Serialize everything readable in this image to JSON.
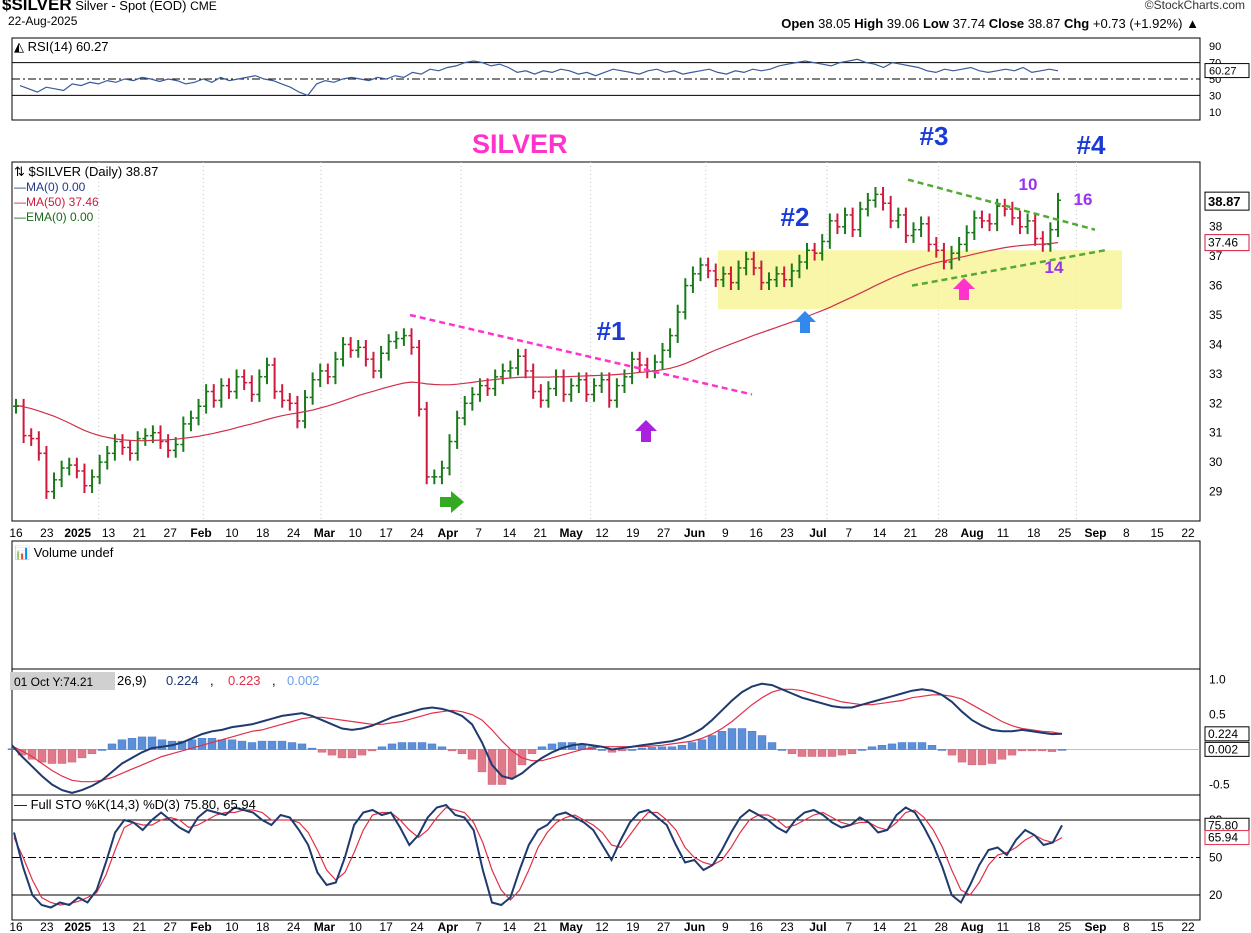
{
  "header": {
    "symbol": "$SILVER",
    "description": "Silver - Spot (EOD)",
    "exchange": "CME",
    "date": "22-Aug-2025",
    "watermark": "©StockCharts.com",
    "ohlc": {
      "open_label": "Open",
      "open": "38.05",
      "high_label": "High",
      "high": "39.06",
      "low_label": "Low",
      "low": "37.74",
      "close_label": "Close",
      "close": "38.87",
      "chg_label": "Chg",
      "chg": "+0.73 (+1.92%)"
    }
  },
  "colors": {
    "up": "#1a7a1a",
    "down": "#d0183c",
    "ma50": "#d0304a",
    "rsi": "#3a5a9a",
    "macd_line": "#1f3a6e",
    "macd_signal": "#e0304a",
    "hist_pos": "#5b8fd8",
    "hist_neg": "#e07a8a",
    "sto_k": "#1f3a6e",
    "sto_d": "#e0304a",
    "zone": "#f7f28c",
    "magenta": "#ff33cc",
    "label_blue": "#1a3ad8",
    "label_purple": "#9933ee",
    "trend_green": "#55aa33"
  },
  "x_axis_labels": [
    {
      "text": "16",
      "bold": false
    },
    {
      "text": "23",
      "bold": false
    },
    {
      "text": "2025",
      "bold": true
    },
    {
      "text": "13",
      "bold": false
    },
    {
      "text": "21",
      "bold": false
    },
    {
      "text": "27",
      "bold": false
    },
    {
      "text": "Feb",
      "bold": true
    },
    {
      "text": "10",
      "bold": false
    },
    {
      "text": "18",
      "bold": false
    },
    {
      "text": "24",
      "bold": false
    },
    {
      "text": "Mar",
      "bold": true
    },
    {
      "text": "10",
      "bold": false
    },
    {
      "text": "17",
      "bold": false
    },
    {
      "text": "24",
      "bold": false
    },
    {
      "text": "Apr",
      "bold": true
    },
    {
      "text": "7",
      "bold": false
    },
    {
      "text": "14",
      "bold": false
    },
    {
      "text": "21",
      "bold": false
    },
    {
      "text": "May",
      "bold": true
    },
    {
      "text": "12",
      "bold": false
    },
    {
      "text": "19",
      "bold": false
    },
    {
      "text": "27",
      "bold": false
    },
    {
      "text": "Jun",
      "bold": true
    },
    {
      "text": "9",
      "bold": false
    },
    {
      "text": "16",
      "bold": false
    },
    {
      "text": "23",
      "bold": false
    },
    {
      "text": "Jul",
      "bold": true
    },
    {
      "text": "7",
      "bold": false
    },
    {
      "text": "14",
      "bold": false
    },
    {
      "text": "21",
      "bold": false
    },
    {
      "text": "28",
      "bold": false
    },
    {
      "text": "Aug",
      "bold": true
    },
    {
      "text": "11",
      "bold": false
    },
    {
      "text": "18",
      "bold": false
    },
    {
      "text": "25",
      "bold": false
    },
    {
      "text": "Sep",
      "bold": true
    },
    {
      "text": "8",
      "bold": false
    },
    {
      "text": "15",
      "bold": false
    },
    {
      "text": "22",
      "bold": false
    }
  ],
  "chart_data": [
    {
      "type": "line",
      "panel": "rsi",
      "legend": "RSI(14) 60.27",
      "last_value": "60.27",
      "ylim": [
        0,
        100
      ],
      "y_ticks": [
        "90",
        "70",
        "50",
        "30",
        "10"
      ],
      "levels": [
        70,
        50,
        30
      ],
      "values": [
        42,
        38,
        34,
        40,
        38,
        36,
        44,
        42,
        46,
        44,
        48,
        46,
        50,
        48,
        52,
        50,
        47,
        50,
        48,
        44,
        46,
        50,
        46,
        52,
        48,
        50,
        52,
        54,
        50,
        48,
        44,
        40,
        34,
        30,
        44,
        48,
        46,
        50,
        52,
        50,
        48,
        52,
        50,
        54,
        52,
        58,
        56,
        62,
        60,
        64,
        66,
        70,
        72,
        70,
        66,
        68,
        64,
        58,
        60,
        56,
        60,
        58,
        62,
        60,
        56,
        58,
        54,
        58,
        62,
        60,
        58,
        56,
        60,
        62,
        58,
        60,
        56,
        58,
        60,
        62,
        58,
        56,
        60,
        58,
        62,
        60,
        62,
        66,
        68,
        70,
        72,
        70,
        68,
        66,
        70,
        72,
        74,
        70,
        68,
        64,
        70,
        68,
        66,
        64,
        60,
        58,
        62,
        60,
        62,
        64,
        60,
        58,
        60,
        62,
        60,
        64,
        58,
        60,
        62,
        60
      ]
    },
    {
      "type": "bar",
      "panel": "price",
      "legend": {
        "title": "$SILVER (Daily) 38.87",
        "ma0": "MA(0) 0.00",
        "ma50": "MA(50) 37.46",
        "ema0": "EMA(0) 0.00"
      },
      "last_price": "38.87",
      "ma50_last": "37.46",
      "ylim": [
        28.0,
        40.2
      ],
      "y_ticks": [
        "38",
        "37",
        "36",
        "35",
        "34",
        "33",
        "32",
        "31",
        "30",
        "29"
      ],
      "close": [
        31.9,
        30.9,
        30.8,
        30.3,
        29.0,
        29.4,
        29.8,
        29.9,
        29.7,
        29.2,
        29.5,
        30.0,
        30.3,
        30.7,
        30.5,
        30.3,
        30.8,
        30.9,
        31.0,
        30.7,
        30.4,
        30.6,
        31.3,
        31.5,
        31.9,
        32.4,
        32.1,
        32.6,
        32.4,
        32.9,
        32.7,
        32.3,
        32.9,
        33.3,
        32.4,
        32.1,
        32.0,
        31.4,
        32.2,
        32.8,
        33.1,
        32.9,
        33.5,
        34.0,
        33.8,
        33.9,
        33.5,
        33.1,
        33.7,
        34.1,
        34.2,
        34.3,
        33.9,
        31.8,
        29.5,
        29.5,
        29.8,
        30.7,
        31.5,
        32.0,
        32.3,
        32.6,
        32.5,
        32.9,
        33.1,
        33.2,
        33.6,
        33.1,
        32.4,
        32.1,
        32.5,
        32.9,
        32.3,
        32.6,
        32.8,
        32.3,
        32.6,
        32.8,
        32.1,
        32.6,
        32.9,
        33.5,
        33.3,
        33.1,
        33.4,
        33.8,
        34.3,
        35.1,
        36.0,
        36.4,
        36.7,
        36.5,
        36.2,
        36.4,
        36.1,
        36.6,
        36.9,
        36.6,
        36.1,
        36.2,
        36.4,
        36.2,
        36.5,
        36.8,
        37.2,
        37.1,
        37.5,
        38.2,
        38.0,
        38.4,
        37.9,
        38.6,
        38.9,
        39.1,
        38.8,
        38.2,
        38.4,
        37.7,
        37.9,
        38.1,
        37.4,
        37.2,
        36.8,
        37.1,
        37.4,
        37.8,
        38.3,
        38.2,
        38.1,
        38.7,
        38.6,
        38.3,
        38.0,
        38.2,
        37.6,
        37.4,
        37.9,
        38.9
      ],
      "ma50": [
        31.94,
        31.88,
        31.82,
        31.74,
        31.65,
        31.56,
        31.45,
        31.33,
        31.2,
        31.08,
        30.98,
        30.9,
        30.84,
        30.79,
        30.76,
        30.74,
        30.73,
        30.73,
        30.74,
        30.75,
        30.76,
        30.78,
        30.81,
        30.84,
        30.88,
        30.93,
        30.98,
        31.04,
        31.1,
        31.17,
        31.24,
        31.3,
        31.37,
        31.45,
        31.52,
        31.58,
        31.63,
        31.67,
        31.72,
        31.77,
        31.84,
        31.91,
        31.99,
        32.08,
        32.17,
        32.26,
        32.34,
        32.41,
        32.49,
        32.56,
        32.63,
        32.69,
        32.72,
        32.7,
        32.66,
        32.64,
        32.63,
        32.63,
        32.65,
        32.68,
        32.71,
        32.75,
        32.78,
        32.81,
        32.84,
        32.86,
        32.88,
        32.89,
        32.89,
        32.89,
        32.89,
        32.9,
        32.9,
        32.91,
        32.92,
        32.93,
        32.94,
        32.95,
        32.96,
        32.98,
        33.0,
        33.02,
        33.05,
        33.07,
        33.1,
        33.14,
        33.19,
        33.26,
        33.35,
        33.46,
        33.58,
        33.7,
        33.81,
        33.91,
        34.01,
        34.11,
        34.21,
        34.31,
        34.4,
        34.49,
        34.58,
        34.67,
        34.76,
        34.85,
        34.95,
        35.05,
        35.15,
        35.26,
        35.38,
        35.5,
        35.62,
        35.74,
        35.87,
        36.0,
        36.12,
        36.24,
        36.35,
        36.45,
        36.54,
        36.63,
        36.71,
        36.78,
        36.84,
        36.89,
        36.95,
        37.01,
        37.07,
        37.13,
        37.19,
        37.24,
        37.29,
        37.33,
        37.36,
        37.38,
        37.4,
        37.41,
        37.43,
        37.46
      ],
      "zone": {
        "y_low": 35.2,
        "y_high": 37.2
      },
      "annotations": {
        "title": "SILVER",
        "n1": "#1",
        "n2": "#2",
        "n3": "#3",
        "n4": "#4",
        "c10": "10",
        "c14": "14",
        "c16": "16"
      }
    },
    {
      "type": "bar",
      "panel": "volume",
      "legend": "Volume undef",
      "values": []
    },
    {
      "type": "line",
      "panel": "macd",
      "legend_prefix": "26,9)",
      "legend_macd": "0.224",
      "legend_signal": "0.223",
      "legend_hist": "0.002",
      "tooltip": "01 Oct Y:74.21",
      "ylim": [
        -0.65,
        1.15
      ],
      "y_ticks": [
        "1.0",
        "0.5",
        "-0.5"
      ],
      "last_macd": "0.224",
      "last_hist": "0.002",
      "macd": [
        0.06,
        -0.1,
        -0.24,
        -0.38,
        -0.5,
        -0.58,
        -0.62,
        -0.58,
        -0.52,
        -0.44,
        -0.32,
        -0.2,
        -0.12,
        -0.04,
        0.02,
        0.04,
        0.06,
        0.1,
        0.16,
        0.22,
        0.26,
        0.28,
        0.32,
        0.34,
        0.36,
        0.4,
        0.44,
        0.48,
        0.5,
        0.52,
        0.48,
        0.42,
        0.36,
        0.3,
        0.28,
        0.3,
        0.34,
        0.4,
        0.46,
        0.5,
        0.54,
        0.58,
        0.6,
        0.58,
        0.54,
        0.48,
        0.36,
        0.1,
        -0.22,
        -0.38,
        -0.42,
        -0.34,
        -0.22,
        -0.12,
        -0.04,
        0.02,
        0.06,
        0.08,
        0.06,
        0.04,
        0.0,
        0.02,
        0.04,
        0.06,
        0.08,
        0.1,
        0.12,
        0.16,
        0.22,
        0.3,
        0.42,
        0.56,
        0.7,
        0.82,
        0.9,
        0.94,
        0.92,
        0.86,
        0.8,
        0.74,
        0.7,
        0.66,
        0.62,
        0.6,
        0.6,
        0.64,
        0.68,
        0.72,
        0.76,
        0.8,
        0.84,
        0.86,
        0.84,
        0.78,
        0.68,
        0.54,
        0.42,
        0.34,
        0.28,
        0.26,
        0.26,
        0.28,
        0.26,
        0.24,
        0.22,
        0.224
      ],
      "signal": [
        0.05,
        -0.02,
        -0.1,
        -0.2,
        -0.3,
        -0.38,
        -0.44,
        -0.46,
        -0.46,
        -0.44,
        -0.4,
        -0.34,
        -0.28,
        -0.22,
        -0.16,
        -0.1,
        -0.06,
        -0.02,
        0.02,
        0.06,
        0.1,
        0.14,
        0.18,
        0.22,
        0.26,
        0.28,
        0.32,
        0.36,
        0.4,
        0.44,
        0.46,
        0.46,
        0.44,
        0.42,
        0.4,
        0.38,
        0.36,
        0.36,
        0.38,
        0.4,
        0.44,
        0.48,
        0.52,
        0.54,
        0.56,
        0.54,
        0.5,
        0.42,
        0.28,
        0.12,
        -0.02,
        -0.12,
        -0.16,
        -0.16,
        -0.12,
        -0.08,
        -0.04,
        0.0,
        0.02,
        0.04,
        0.04,
        0.04,
        0.04,
        0.04,
        0.05,
        0.06,
        0.08,
        0.1,
        0.12,
        0.16,
        0.22,
        0.3,
        0.4,
        0.52,
        0.64,
        0.74,
        0.82,
        0.86,
        0.86,
        0.84,
        0.8,
        0.76,
        0.72,
        0.68,
        0.66,
        0.64,
        0.64,
        0.66,
        0.68,
        0.7,
        0.74,
        0.76,
        0.78,
        0.78,
        0.76,
        0.72,
        0.64,
        0.56,
        0.48,
        0.4,
        0.34,
        0.3,
        0.28,
        0.26,
        0.25,
        0.223
      ]
    },
    {
      "type": "line",
      "panel": "stochastic",
      "legend": "Full STO %K(14,3) %D(3) 75.80, 65.94",
      "last_k": "75.80",
      "last_d": "65.94",
      "ylim": [
        0,
        100
      ],
      "y_ticks": [
        "80",
        "50",
        "20"
      ],
      "levels": [
        80,
        50,
        20
      ],
      "k": [
        70,
        42,
        20,
        12,
        10,
        14,
        12,
        18,
        14,
        24,
        46,
        70,
        80,
        78,
        72,
        80,
        86,
        80,
        74,
        70,
        82,
        88,
        86,
        84,
        90,
        88,
        86,
        80,
        76,
        84,
        82,
        72,
        60,
        38,
        28,
        30,
        50,
        76,
        86,
        88,
        84,
        86,
        74,
        60,
        68,
        82,
        90,
        92,
        84,
        82,
        72,
        40,
        14,
        12,
        18,
        40,
        60,
        72,
        76,
        84,
        86,
        82,
        78,
        72,
        60,
        48,
        64,
        78,
        86,
        88,
        82,
        76,
        60,
        46,
        48,
        40,
        44,
        56,
        70,
        82,
        88,
        84,
        80,
        74,
        70,
        80,
        86,
        88,
        84,
        78,
        74,
        76,
        82,
        78,
        70,
        72,
        84,
        90,
        86,
        74,
        60,
        42,
        20,
        14,
        28,
        44,
        56,
        58,
        52,
        64,
        72,
        68,
        60,
        62,
        75.8
      ],
      "d": [
        66,
        50,
        32,
        18,
        14,
        12,
        13,
        15,
        18,
        22,
        36,
        56,
        74,
        78,
        76,
        76,
        80,
        82,
        80,
        74,
        76,
        80,
        84,
        86,
        86,
        88,
        88,
        86,
        80,
        80,
        80,
        78,
        70,
        56,
        40,
        32,
        38,
        54,
        72,
        84,
        86,
        86,
        80,
        72,
        66,
        72,
        82,
        90,
        88,
        86,
        78,
        62,
        40,
        24,
        16,
        24,
        40,
        58,
        70,
        78,
        82,
        84,
        80,
        76,
        70,
        60,
        58,
        68,
        78,
        86,
        86,
        80,
        72,
        58,
        50,
        46,
        44,
        48,
        58,
        70,
        80,
        84,
        84,
        80,
        74,
        76,
        80,
        84,
        86,
        82,
        78,
        76,
        78,
        78,
        74,
        72,
        78,
        86,
        88,
        82,
        72,
        58,
        40,
        24,
        20,
        30,
        44,
        52,
        54,
        58,
        64,
        68,
        64,
        62,
        65.94
      ]
    }
  ]
}
